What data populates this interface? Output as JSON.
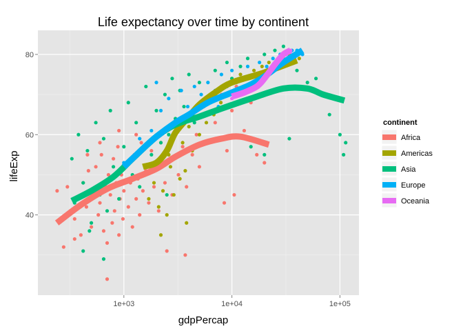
{
  "chart_data": {
    "type": "scatter",
    "title": "Life expectancy over time by continent",
    "xlabel": "gdpPercap",
    "ylabel": "lifeExp",
    "x_scale": "log10",
    "xlim": [
      160,
      150000
    ],
    "ylim": [
      20,
      86
    ],
    "x_ticks": [
      {
        "value": 1000,
        "label": "1e+03"
      },
      {
        "value": 10000,
        "label": "1e+04"
      },
      {
        "value": 100000,
        "label": "1e+05"
      }
    ],
    "y_ticks": [
      {
        "value": 40,
        "label": "40"
      },
      {
        "value": 60,
        "label": "60"
      },
      {
        "value": 80,
        "label": "80"
      }
    ],
    "grid": true,
    "legend": {
      "title": "continent",
      "position": "right"
    },
    "series": [
      {
        "name": "Africa",
        "color": "#F8766D",
        "smooth": [
          [
            240,
            38.0
          ],
          [
            400,
            42.5
          ],
          [
            700,
            46.5
          ],
          [
            1200,
            49.0
          ],
          [
            2000,
            51.5
          ],
          [
            3000,
            54.5
          ],
          [
            5000,
            57.5
          ],
          [
            8000,
            59.0
          ],
          [
            12000,
            59.5
          ],
          [
            22000,
            57.5
          ]
        ],
        "points": [
          [
            241,
            46
          ],
          [
            277,
            32
          ],
          [
            300,
            47
          ],
          [
            320,
            41
          ],
          [
            350,
            39
          ],
          [
            380,
            44
          ],
          [
            400,
            35
          ],
          [
            420,
            48
          ],
          [
            450,
            42
          ],
          [
            470,
            51
          ],
          [
            500,
            37
          ],
          [
            520,
            45
          ],
          [
            550,
            52
          ],
          [
            580,
            40
          ],
          [
            600,
            43
          ],
          [
            620,
            55
          ],
          [
            650,
            36
          ],
          [
            680,
            47
          ],
          [
            700,
            33
          ],
          [
            720,
            50
          ],
          [
            750,
            45
          ],
          [
            780,
            38
          ],
          [
            800,
            54
          ],
          [
            820,
            41
          ],
          [
            850,
            48
          ],
          [
            880,
            57
          ],
          [
            900,
            35
          ],
          [
            920,
            44
          ],
          [
            950,
            50
          ],
          [
            980,
            39
          ],
          [
            1000,
            46
          ],
          [
            1050,
            53
          ],
          [
            1100,
            42
          ],
          [
            1150,
            48
          ],
          [
            1200,
            37
          ],
          [
            1250,
            55
          ],
          [
            1300,
            44
          ],
          [
            1350,
            49
          ],
          [
            1400,
            40
          ],
          [
            1450,
            58
          ],
          [
            1500,
            46
          ],
          [
            1600,
            51
          ],
          [
            1700,
            43
          ],
          [
            1800,
            56
          ],
          [
            1900,
            47
          ],
          [
            2000,
            52
          ],
          [
            2100,
            41
          ],
          [
            2200,
            58
          ],
          [
            2400,
            48
          ],
          [
            2600,
            55
          ],
          [
            2800,
            45
          ],
          [
            3000,
            62
          ],
          [
            3200,
            50
          ],
          [
            3500,
            57
          ],
          [
            3800,
            47
          ],
          [
            4000,
            65
          ],
          [
            4300,
            55
          ],
          [
            4700,
            60
          ],
          [
            5000,
            52
          ],
          [
            5500,
            67
          ],
          [
            6000,
            58
          ],
          [
            7000,
            63
          ],
          [
            8000,
            70
          ],
          [
            9000,
            56
          ],
          [
            10000,
            66
          ],
          [
            11000,
            72
          ],
          [
            13000,
            61
          ],
          [
            15000,
            68
          ],
          [
            17000,
            55
          ],
          [
            20000,
            53
          ],
          [
            21000,
            58
          ],
          [
            700,
            24
          ],
          [
            350,
            34
          ],
          [
            2500,
            31
          ],
          [
            3700,
            30
          ],
          [
            600,
            58
          ],
          [
            900,
            61
          ],
          [
            1300,
            60
          ],
          [
            10500,
            45
          ],
          [
            8500,
            43
          ],
          [
            460,
            55
          ]
        ]
      },
      {
        "name": "Americas",
        "color": "#A3A500",
        "smooth": [
          [
            1500,
            52.0
          ],
          [
            2000,
            53.0
          ],
          [
            2500,
            56.0
          ],
          [
            3000,
            60.5
          ],
          [
            4000,
            64.5
          ],
          [
            5000,
            67.5
          ],
          [
            7000,
            70.5
          ],
          [
            10000,
            73.0
          ],
          [
            20000,
            75.5
          ],
          [
            40000,
            78.5
          ]
        ],
        "points": [
          [
            1700,
            44
          ],
          [
            1900,
            48
          ],
          [
            2100,
            42
          ],
          [
            2300,
            46
          ],
          [
            2500,
            40
          ],
          [
            2700,
            52
          ],
          [
            2900,
            45
          ],
          [
            3100,
            55
          ],
          [
            3300,
            49
          ],
          [
            3500,
            58
          ],
          [
            3700,
            51
          ],
          [
            4000,
            62
          ],
          [
            4300,
            56
          ],
          [
            4600,
            64
          ],
          [
            5000,
            60
          ],
          [
            5400,
            67
          ],
          [
            5800,
            63
          ],
          [
            6300,
            69
          ],
          [
            6800,
            65
          ],
          [
            7300,
            71
          ],
          [
            7900,
            68
          ],
          [
            8500,
            72
          ],
          [
            9200,
            70
          ],
          [
            10000,
            74
          ],
          [
            11000,
            73
          ],
          [
            12000,
            75
          ],
          [
            14000,
            74
          ],
          [
            16000,
            76
          ],
          [
            19000,
            77
          ],
          [
            22000,
            78
          ],
          [
            26000,
            78
          ],
          [
            30000,
            79
          ],
          [
            34000,
            80
          ],
          [
            38000,
            78
          ],
          [
            42000,
            79
          ],
          [
            2200,
            35
          ],
          [
            3800,
            38
          ],
          [
            2600,
            55
          ],
          [
            1800,
            58
          ]
        ]
      },
      {
        "name": "Asia",
        "color": "#00BF7D",
        "smooth": [
          [
            330,
            43.5
          ],
          [
            500,
            46.0
          ],
          [
            800,
            49.5
          ],
          [
            1200,
            54.0
          ],
          [
            2000,
            59.5
          ],
          [
            3000,
            62.5
          ],
          [
            5000,
            64.5
          ],
          [
            8000,
            66.5
          ],
          [
            15000,
            69.0
          ],
          [
            30000,
            71.5
          ],
          [
            50000,
            71.5
          ],
          [
            70000,
            70.0
          ],
          [
            110000,
            68.5
          ]
        ],
        "points": [
          [
            330,
            54
          ],
          [
            350,
            43
          ],
          [
            380,
            60
          ],
          [
            420,
            48
          ],
          [
            460,
            56
          ],
          [
            500,
            38
          ],
          [
            550,
            63
          ],
          [
            600,
            45
          ],
          [
            650,
            59
          ],
          [
            700,
            41
          ],
          [
            750,
            66
          ],
          [
            800,
            52
          ],
          [
            900,
            44
          ],
          [
            1000,
            57
          ],
          [
            1100,
            68
          ],
          [
            1200,
            50
          ],
          [
            1300,
            63
          ],
          [
            1400,
            47
          ],
          [
            1600,
            72
          ],
          [
            1800,
            55
          ],
          [
            2000,
            66
          ],
          [
            2200,
            58
          ],
          [
            2400,
            70
          ],
          [
            2600,
            60
          ],
          [
            2800,
            74
          ],
          [
            3000,
            64
          ],
          [
            3300,
            71
          ],
          [
            3600,
            67
          ],
          [
            4000,
            75
          ],
          [
            4500,
            63
          ],
          [
            5000,
            73
          ],
          [
            6000,
            69
          ],
          [
            7000,
            76
          ],
          [
            8000,
            72
          ],
          [
            9000,
            78
          ],
          [
            10000,
            74
          ],
          [
            12000,
            77
          ],
          [
            14000,
            79
          ],
          [
            16000,
            72
          ],
          [
            20000,
            80
          ],
          [
            25000,
            81
          ],
          [
            30000,
            82
          ],
          [
            35000,
            78
          ],
          [
            40000,
            76
          ],
          [
            50000,
            73
          ],
          [
            60000,
            74
          ],
          [
            80000,
            65
          ],
          [
            100000,
            60
          ],
          [
            108000,
            55
          ],
          [
            113000,
            58
          ],
          [
            34000,
            59
          ],
          [
            20000,
            55
          ],
          [
            15000,
            57
          ],
          [
            420,
            31
          ],
          [
            480,
            36
          ],
          [
            650,
            29
          ],
          [
            2500,
            45
          ]
        ]
      },
      {
        "name": "Europe",
        "color": "#00B0F6",
        "smooth": [
          [
            1000,
            52.0
          ],
          [
            1500,
            56.5
          ],
          [
            2000,
            59.5
          ],
          [
            3000,
            63.0
          ],
          [
            4000,
            65.0
          ],
          [
            6000,
            68.0
          ],
          [
            10000,
            70.5
          ],
          [
            15000,
            72.5
          ],
          [
            20000,
            74.5
          ],
          [
            30000,
            78.0
          ],
          [
            45000,
            81.0
          ]
        ],
        "points": [
          [
            1000,
            53
          ],
          [
            1400,
            59
          ],
          [
            1800,
            61
          ],
          [
            2200,
            66
          ],
          [
            2600,
            69
          ],
          [
            3000,
            63
          ],
          [
            3400,
            71
          ],
          [
            3900,
            67
          ],
          [
            4500,
            72
          ],
          [
            5200,
            70
          ],
          [
            6000,
            73
          ],
          [
            7000,
            71
          ],
          [
            8000,
            75
          ],
          [
            9000,
            72
          ],
          [
            10000,
            76
          ],
          [
            12000,
            74
          ],
          [
            14000,
            77
          ],
          [
            16000,
            75
          ],
          [
            18000,
            78
          ],
          [
            21000,
            77
          ],
          [
            24000,
            79
          ],
          [
            28000,
            80
          ],
          [
            32000,
            80
          ],
          [
            36000,
            81
          ],
          [
            40000,
            81
          ],
          [
            45000,
            80
          ],
          [
            5500,
            65
          ],
          [
            2000,
            73
          ],
          [
            7500,
            67
          ]
        ]
      },
      {
        "name": "Oceania",
        "color": "#E76BF3",
        "smooth": [
          [
            10000,
            69.5
          ],
          [
            13000,
            70.5
          ],
          [
            17000,
            72.0
          ],
          [
            20000,
            74.0
          ],
          [
            25000,
            77.5
          ],
          [
            30000,
            80.0
          ],
          [
            35000,
            81.0
          ]
        ],
        "points": [
          [
            10000,
            69
          ],
          [
            11000,
            70
          ],
          [
            12500,
            71
          ],
          [
            14000,
            71
          ],
          [
            16000,
            72
          ],
          [
            18000,
            74
          ],
          [
            20000,
            75
          ],
          [
            23000,
            76
          ],
          [
            26000,
            78
          ],
          [
            29000,
            79
          ],
          [
            32000,
            80
          ],
          [
            35000,
            81
          ]
        ]
      }
    ]
  }
}
